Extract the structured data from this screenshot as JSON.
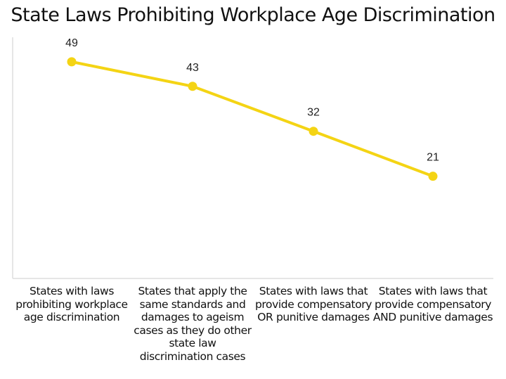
{
  "chart_data": {
    "type": "line",
    "title": "State Laws Prohibiting Workplace Age Discrimination",
    "categories": [
      "States with laws prohibiting workplace age discrimination",
      "States that apply the same standards and damages to ageism cases as they do other state law discrimination cases",
      "States with laws that provide compensatory OR punitive damages",
      "States with laws that provide compensatory AND punitive damages"
    ],
    "values": [
      49,
      43,
      32,
      21
    ],
    "data_labels": [
      "49",
      "43",
      "32",
      "21"
    ],
    "xlabel": "",
    "ylabel": "",
    "ylim": [
      -4,
      55
    ],
    "grid": false,
    "legend": "none",
    "color": "#f4d414"
  }
}
